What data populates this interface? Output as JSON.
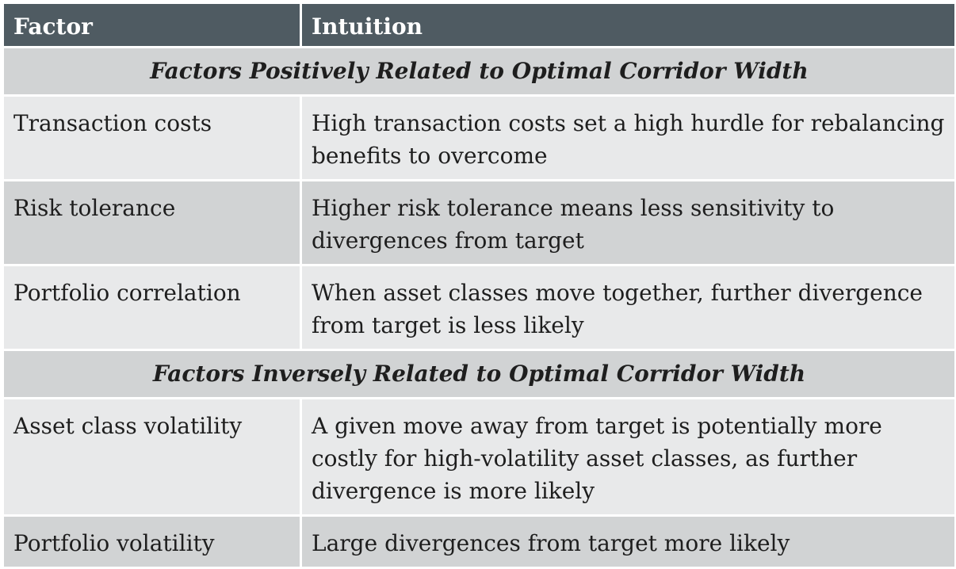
{
  "table": {
    "headers": [
      "Factor",
      "Intuition"
    ],
    "colors": {
      "header_bg": "#4f5b62",
      "header_text": "#ffffff",
      "row_dark": "#d1d3d4",
      "row_light": "#e8e9ea",
      "text": "#1e1e1e"
    },
    "sections": [
      {
        "title": "Factors Positively Related to Optimal Corridor Width",
        "rows": [
          {
            "factor": "Transaction costs",
            "intuition": "High transaction costs set a high hurdle for rebalancing benefits to overcome"
          },
          {
            "factor": "Risk tolerance",
            "intuition": "Higher risk tolerance means less sensitivity to divergences from target"
          },
          {
            "factor": "Portfolio correlation",
            "intuition": "When asset classes move together, further divergence from target is less likely"
          }
        ]
      },
      {
        "title": "Factors Inversely Related to Optimal Corridor Width",
        "rows": [
          {
            "factor": "Asset class volatility",
            "intuition": "A given move away from target is potentially more costly for high-volatility asset classes, as further divergence is more likely"
          },
          {
            "factor": "Portfolio volatility",
            "intuition": "Large divergences from target more likely"
          }
        ]
      }
    ]
  }
}
